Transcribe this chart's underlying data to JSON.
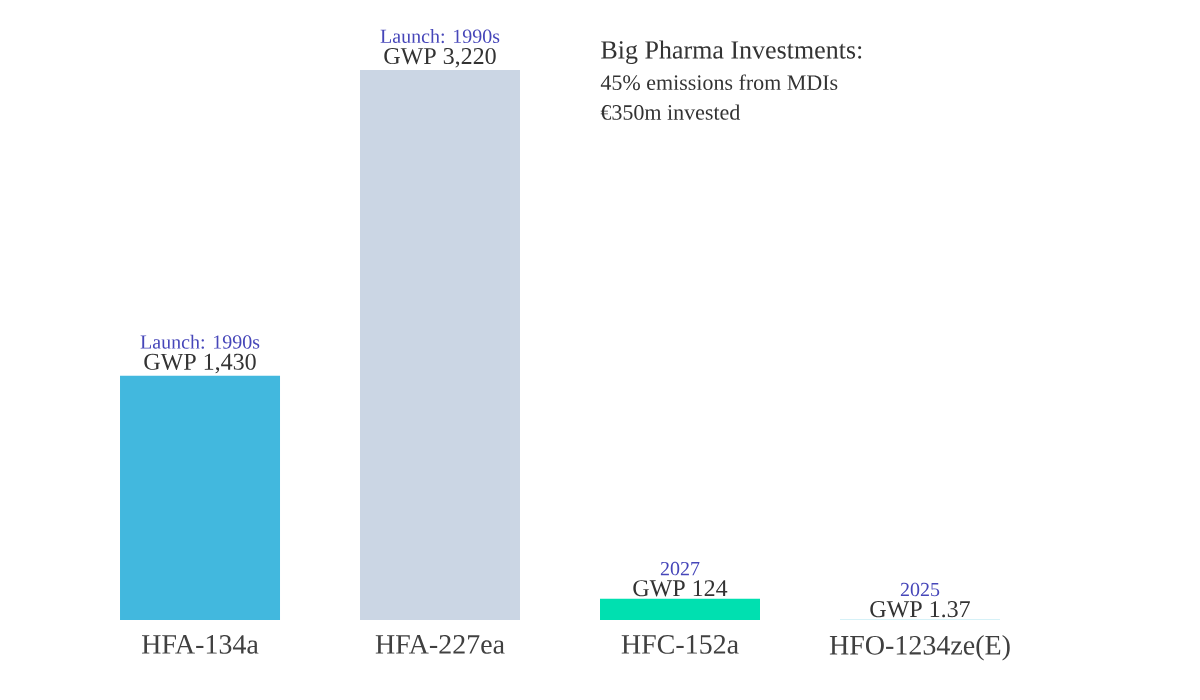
{
  "chart_data": {
    "type": "bar",
    "categories": [
      "HFA-134a",
      "HFA-227ea",
      "HFC-152a",
      "HFO-1234ze(E)"
    ],
    "values": [
      1430,
      3220,
      124,
      1.37
    ],
    "value_labels": [
      "GWP 1,430",
      "GWP 3,220",
      "GWP 124",
      "GWP 1.37"
    ],
    "colors": [
      "#42b8de",
      "#cbd6e4",
      "#00e0b0",
      "#5bc8e0"
    ],
    "annotations": [
      "Launch: 1990s",
      "Launch: 1990s",
      "2027",
      "2025",
      "Big Pharma Investments:",
      "45% emissions from MDIs",
      "€350m invested"
    ]
  }
}
